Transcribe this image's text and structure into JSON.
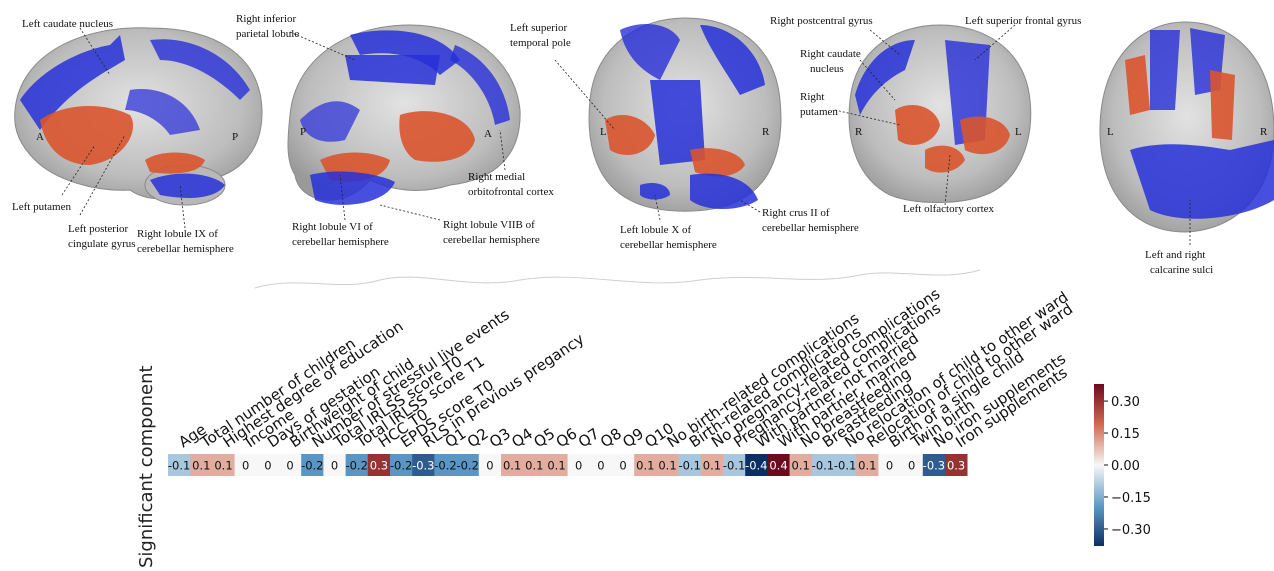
{
  "annotations": {
    "left_caudate": "Left caudate nucleus",
    "left_putamen": "Left putamen",
    "left_posterior_cingulate_1": "Left posterior",
    "left_posterior_cingulate_2": "cingulate gyrus",
    "right_lobule_ix_1": "Right lobule IX of",
    "right_lobule_ix_2": "cerebellar hemisphere",
    "right_inferior_parietal_1": "Right inferior",
    "right_inferior_parietal_2": "parietal lobule",
    "right_medial_ofc_1": "Right medial",
    "right_medial_ofc_2": "orbitofrontal cortex",
    "right_lobule_vi_1": "Right lobule VI of",
    "right_lobule_vi_2": "cerebellar hemisphere",
    "right_lobule_viib_1": "Right lobule VIIB of",
    "right_lobule_viib_2": "cerebellar hemisphere",
    "left_sup_temporal_pole_1": "Left superior",
    "left_sup_temporal_pole_2": "temporal pole",
    "left_lobule_x_1": "Left lobule X of",
    "left_lobule_x_2": "cerebellar hemisphere",
    "right_crus_ii_1": "Right crus II of",
    "right_crus_ii_2": "cerebellar hemisphere",
    "right_postcentral": "Right postcentral gyrus",
    "left_superior_frontal": "Left superior frontal gyrus",
    "right_caudate_1": "Right caudate",
    "right_caudate_2": "nucleus",
    "right_putamen_1": "Right",
    "right_putamen_2": "putamen",
    "left_olfactory": "Left olfactory cortex",
    "calcarine_1": "Left and right",
    "calcarine_2": "calcarine sulci",
    "orient_A": "A",
    "orient_P": "P",
    "orient_L": "L",
    "orient_R": "R"
  },
  "chart_data": {
    "type": "heatmap",
    "row_label": "Significant component",
    "columns": [
      {
        "label": "Age",
        "value": -0.1
      },
      {
        "label": "Total number of children",
        "value": 0.1
      },
      {
        "label": "Highest degree of education",
        "value": 0.1
      },
      {
        "label": "Income",
        "value": 0
      },
      {
        "label": "Days of gestation",
        "value": 0
      },
      {
        "label": "Birthweight of child",
        "value": 0
      },
      {
        "label": "Number of stressful live events",
        "value": -0.2
      },
      {
        "label": "Total IRLSS score T0",
        "value": 0
      },
      {
        "label": "Total IRLSS score T1",
        "value": -0.2
      },
      {
        "label": "HCC T0",
        "value": 0.3
      },
      {
        "label": "EPDS score T0",
        "value": -0.2
      },
      {
        "label": "RLS in previous pregancy",
        "value": -0.3
      },
      {
        "label": "Q1",
        "value": -0.2
      },
      {
        "label": "Q2",
        "value": -0.2
      },
      {
        "label": "Q3",
        "value": 0
      },
      {
        "label": "Q4",
        "value": 0.1
      },
      {
        "label": "Q5",
        "value": 0.1
      },
      {
        "label": "Q6",
        "value": 0.1
      },
      {
        "label": "Q7",
        "value": 0
      },
      {
        "label": "Q8",
        "value": 0
      },
      {
        "label": "Q9",
        "value": 0
      },
      {
        "label": "Q10",
        "value": 0.1
      },
      {
        "label": "No birth-related complications",
        "value": 0.1
      },
      {
        "label": "Birth-related complications",
        "value": -0.1
      },
      {
        "label": "No pregnancy-related complications",
        "value": 0.1
      },
      {
        "label": "Pregnancy-related complications",
        "value": -0.1
      },
      {
        "label": "With partner, not married",
        "value": -0.4
      },
      {
        "label": "With partner, married",
        "value": 0.4
      },
      {
        "label": "No breastfeeding",
        "value": 0.1
      },
      {
        "label": "Breastfeeding",
        "value": -0.1
      },
      {
        "label": "No relocation of child to other ward",
        "value": -0.1
      },
      {
        "label": "Relocation of child to other ward",
        "value": 0.1
      },
      {
        "label": "Birth of a single child",
        "value": 0
      },
      {
        "label": "Twin birth",
        "value": 0
      },
      {
        "label": "No iron supplements",
        "value": -0.3
      },
      {
        "label": "Iron supplements",
        "value": 0.3
      }
    ],
    "colorbar": {
      "ticks": [
        "0.30",
        "0.15",
        "0.00",
        "−0.15",
        "−0.30"
      ],
      "range": [
        -0.38,
        0.38
      ],
      "colors": {
        "neg": "#0b2f63",
        "mid": "#f7f7f7",
        "pos": "#6e0a1e"
      }
    }
  }
}
